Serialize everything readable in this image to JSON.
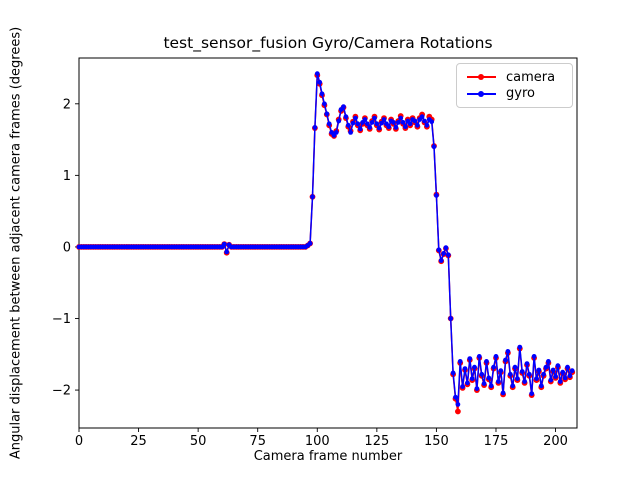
{
  "chart_data": {
    "type": "line",
    "title": "test_sensor_fusion Gyro/Camera Rotations",
    "xlabel": "Camera frame number",
    "ylabel": "Angular displacement between adjacent camera frames (degrees)",
    "xlim": [
      0,
      209
    ],
    "ylim": [
      -2.53,
      2.64
    ],
    "xticks": [
      0,
      25,
      50,
      75,
      100,
      125,
      150,
      175,
      200
    ],
    "yticks": [
      -2,
      -1,
      0,
      1,
      2
    ],
    "grid": false,
    "marker": "dot",
    "x0": 0,
    "dx": 1,
    "legend": {
      "position": "upper right",
      "entries": [
        {
          "label": "camera",
          "color": "#ff0000"
        },
        {
          "label": "gyro",
          "color": "#0000ff"
        }
      ]
    },
    "series": [
      {
        "name": "camera",
        "color": "#ff0000",
        "values": [
          0,
          0,
          0,
          0,
          0,
          0,
          0,
          0,
          0,
          0,
          0,
          0,
          0,
          0,
          0,
          0,
          0,
          0,
          0,
          0,
          0,
          0,
          0,
          0,
          0,
          0,
          0,
          0,
          0,
          0,
          0,
          0,
          0,
          0,
          0,
          0,
          0,
          0,
          0,
          0,
          0,
          0,
          0,
          0,
          0,
          0,
          0,
          0,
          0,
          0,
          0,
          0,
          0,
          0,
          0,
          0,
          0,
          0,
          0,
          0,
          0,
          0.04,
          -0.08,
          0.03,
          0,
          0,
          0,
          0,
          0,
          0,
          0,
          0,
          0,
          0,
          0,
          0,
          0,
          0,
          0,
          0,
          0,
          0,
          0,
          0,
          0,
          0,
          0,
          0,
          0,
          0,
          0,
          0,
          0,
          0,
          0,
          0,
          0.02,
          0.05,
          0.7,
          1.66,
          2.4,
          2.28,
          2.12,
          1.98,
          1.85,
          1.7,
          1.58,
          1.55,
          1.62,
          1.78,
          1.9,
          1.95,
          1.8,
          1.68,
          1.62,
          1.75,
          1.82,
          1.7,
          1.63,
          1.72,
          1.8,
          1.7,
          1.65,
          1.76,
          1.82,
          1.7,
          1.64,
          1.75,
          1.8,
          1.7,
          1.66,
          1.78,
          1.72,
          1.65,
          1.76,
          1.83,
          1.72,
          1.66,
          1.78,
          1.7,
          1.8,
          1.74,
          1.68,
          1.8,
          1.85,
          1.74,
          1.68,
          1.82,
          1.78,
          1.41,
          0.73,
          -0.05,
          -0.2,
          -0.1,
          -0.02,
          -0.12,
          -1.0,
          -1.78,
          -2.12,
          -2.3,
          -1.62,
          -1.97,
          -1.72,
          -1.92,
          -1.58,
          -1.86,
          -1.7,
          -2.0,
          -1.55,
          -1.8,
          -1.93,
          -1.62,
          -1.85,
          -1.96,
          -1.7,
          -1.55,
          -1.9,
          -1.75,
          -2.06,
          -1.6,
          -1.48,
          -1.8,
          -1.96,
          -1.7,
          -1.86,
          -1.42,
          -1.76,
          -1.9,
          -1.65,
          -1.8,
          -2.07,
          -1.55,
          -1.86,
          -1.74,
          -1.96,
          -1.8,
          -1.7,
          -1.62,
          -1.88,
          -1.74,
          -1.83,
          -1.68,
          -1.9,
          -1.77,
          -1.85,
          -1.7,
          -1.82,
          -1.75
        ]
      },
      {
        "name": "gyro",
        "color": "#0000ff",
        "values": [
          0,
          0,
          0,
          0,
          0,
          0,
          0,
          0,
          0,
          0,
          0,
          0,
          0,
          0,
          0,
          0,
          0,
          0,
          0,
          0,
          0,
          0,
          0,
          0,
          0,
          0,
          0,
          0,
          0,
          0,
          0,
          0,
          0,
          0,
          0,
          0,
          0,
          0,
          0,
          0,
          0,
          0,
          0,
          0,
          0,
          0,
          0,
          0,
          0,
          0,
          0,
          0,
          0,
          0,
          0,
          0,
          0,
          0,
          0,
          0,
          0,
          0.04,
          -0.07,
          0.03,
          0,
          0,
          0,
          0,
          0,
          0,
          0,
          0,
          0,
          0,
          0,
          0,
          0,
          0,
          0,
          0,
          0,
          0,
          0,
          0,
          0,
          0,
          0,
          0,
          0,
          0,
          0,
          0,
          0,
          0,
          0,
          0,
          0.02,
          0.05,
          0.7,
          1.67,
          2.42,
          2.3,
          2.14,
          2.0,
          1.86,
          1.72,
          1.6,
          1.56,
          1.6,
          1.76,
          1.92,
          1.96,
          1.82,
          1.7,
          1.6,
          1.73,
          1.8,
          1.72,
          1.65,
          1.74,
          1.78,
          1.72,
          1.67,
          1.74,
          1.8,
          1.72,
          1.66,
          1.73,
          1.78,
          1.72,
          1.68,
          1.76,
          1.74,
          1.67,
          1.74,
          1.8,
          1.74,
          1.68,
          1.76,
          1.72,
          1.78,
          1.76,
          1.7,
          1.78,
          1.82,
          1.76,
          1.7,
          1.78,
          1.75,
          1.4,
          0.72,
          -0.04,
          -0.19,
          -0.09,
          -0.01,
          -0.11,
          -1.0,
          -1.76,
          -2.1,
          -2.2,
          -1.6,
          -1.95,
          -1.7,
          -1.9,
          -1.56,
          -1.84,
          -1.68,
          -1.98,
          -1.53,
          -1.78,
          -1.91,
          -1.6,
          -1.83,
          -1.94,
          -1.68,
          -1.53,
          -1.88,
          -1.73,
          -2.04,
          -1.58,
          -1.46,
          -1.78,
          -1.94,
          -1.68,
          -1.84,
          -1.4,
          -1.74,
          -1.88,
          -1.63,
          -1.78,
          -2.05,
          -1.53,
          -1.84,
          -1.72,
          -1.94,
          -1.78,
          -1.68,
          -1.6,
          -1.86,
          -1.72,
          -1.81,
          -1.66,
          -1.88,
          -1.75,
          -1.83,
          -1.68,
          -1.8,
          -1.73
        ]
      }
    ]
  }
}
